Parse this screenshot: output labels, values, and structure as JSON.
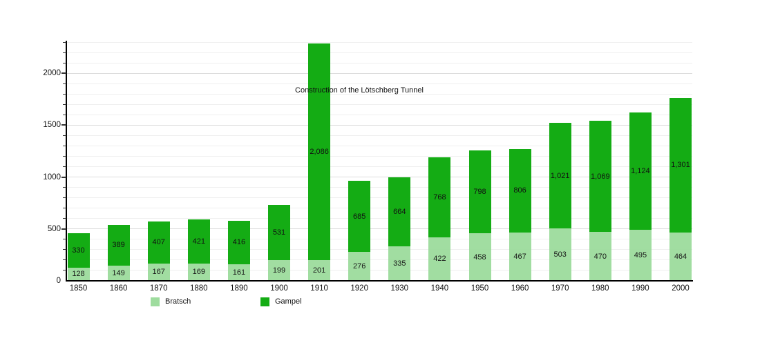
{
  "chart_data": {
    "type": "bar",
    "stacked": true,
    "categories": [
      "1850",
      "1860",
      "1870",
      "1880",
      "1890",
      "1900",
      "1910",
      "1920",
      "1930",
      "1940",
      "1950",
      "1960",
      "1970",
      "1980",
      "1990",
      "2000"
    ],
    "series": [
      {
        "name": "Bratsch",
        "color": "#9EDC9E",
        "values": [
          128,
          149,
          167,
          169,
          161,
          199,
          201,
          276,
          335,
          422,
          458,
          467,
          503,
          470,
          495,
          464
        ]
      },
      {
        "name": "Gampel",
        "color": "#14AC14",
        "values": [
          330,
          389,
          407,
          421,
          416,
          531,
          2086,
          685,
          664,
          768,
          798,
          806,
          1021,
          1069,
          1124,
          1301
        ]
      }
    ],
    "title": "",
    "xlabel": "",
    "ylabel": "",
    "ylim": [
      0,
      2300
    ],
    "yticks": [
      0,
      500,
      1000,
      1500,
      2000
    ],
    "minor_grid_step": 100,
    "grid": true,
    "value_labels_shown": true,
    "annotation": {
      "text": "Construction of the Lötschberg Tunnel",
      "x_category": "1910",
      "y_value": 1800
    },
    "legend_position": "bottom",
    "legend": [
      "Bratsch",
      "Gampel"
    ]
  },
  "colors": {
    "background": "#ffffff",
    "axis": "#000000",
    "minor_gridline": "#efefef",
    "major_gridline": "#dcdcdc",
    "bratsch": "#9EDC9E",
    "gampel": "#14AC14"
  }
}
